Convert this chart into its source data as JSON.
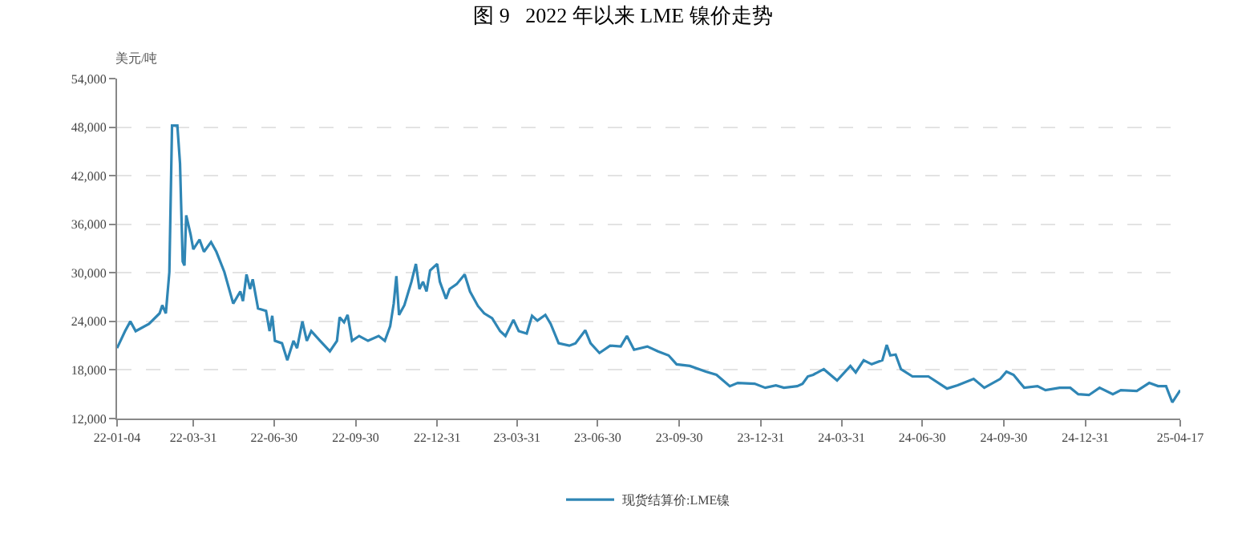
{
  "chart_data": {
    "type": "line",
    "title": "图 9   2022 年以来 LME 镍价走势",
    "ylabel": "美元/吨",
    "x": [
      "2022-01-04",
      "2022-01-13",
      "2022-01-19",
      "2022-01-25",
      "2022-02-09",
      "2022-02-21",
      "2022-02-24",
      "2022-02-28",
      "2022-03-04",
      "2022-03-07",
      "2022-03-13",
      "2022-03-16",
      "2022-03-19",
      "2022-03-21",
      "2022-03-23",
      "2022-03-28",
      "2022-03-31",
      "2022-04-07",
      "2022-04-12",
      "2022-04-20",
      "2022-04-26",
      "2022-05-05",
      "2022-05-15",
      "2022-05-23",
      "2022-05-26",
      "2022-05-30",
      "2022-06-03",
      "2022-06-06",
      "2022-06-12",
      "2022-06-21",
      "2022-06-25",
      "2022-06-28",
      "2022-07-01",
      "2022-07-09",
      "2022-07-15",
      "2022-07-22",
      "2022-07-26",
      "2022-08-01",
      "2022-08-06",
      "2022-08-11",
      "2022-08-21",
      "2022-09-01",
      "2022-09-09",
      "2022-09-12",
      "2022-09-17",
      "2022-09-21",
      "2022-09-26",
      "2022-10-04",
      "2022-10-14",
      "2022-10-26",
      "2022-11-02",
      "2022-11-08",
      "2022-11-12",
      "2022-11-15",
      "2022-11-18",
      "2022-11-24",
      "2022-12-02",
      "2022-12-07",
      "2022-12-11",
      "2022-12-15",
      "2022-12-19",
      "2022-12-23",
      "2022-12-31",
      "2023-01-03",
      "2023-01-10",
      "2023-01-14",
      "2023-01-22",
      "2023-01-31",
      "2023-02-06",
      "2023-02-15",
      "2023-02-22",
      "2023-03-03",
      "2023-03-12",
      "2023-03-18",
      "2023-03-27",
      "2023-04-02",
      "2023-04-11",
      "2023-04-17",
      "2023-04-23",
      "2023-05-02",
      "2023-05-08",
      "2023-05-17",
      "2023-05-29",
      "2023-06-05",
      "2023-06-16",
      "2023-06-22",
      "2023-07-02",
      "2023-07-14",
      "2023-07-26",
      "2023-08-02",
      "2023-08-10",
      "2023-08-25",
      "2023-09-06",
      "2023-09-18",
      "2023-09-27",
      "2023-10-12",
      "2023-10-30",
      "2023-11-11",
      "2023-11-26",
      "2023-12-05",
      "2023-12-24",
      "2024-01-05",
      "2024-01-17",
      "2024-01-26",
      "2024-02-10",
      "2024-02-16",
      "2024-02-22",
      "2024-02-28",
      "2024-03-11",
      "2024-03-26",
      "2024-04-10",
      "2024-04-16",
      "2024-04-25",
      "2024-05-04",
      "2024-05-16",
      "2024-05-21",
      "2024-05-25",
      "2024-05-31",
      "2024-06-06",
      "2024-06-19",
      "2024-07-07",
      "2024-07-28",
      "2024-08-09",
      "2024-08-27",
      "2024-09-08",
      "2024-09-26",
      "2024-10-03",
      "2024-10-11",
      "2024-10-23",
      "2024-11-07",
      "2024-11-16",
      "2024-12-02",
      "2024-12-14",
      "2024-12-23",
      "2025-01-04",
      "2025-01-16",
      "2025-01-31",
      "2025-02-09",
      "2025-02-27",
      "2025-03-13",
      "2025-03-23",
      "2025-04-01",
      "2025-04-08",
      "2025-04-17"
    ],
    "series": [
      {
        "name": "现货结算价:LME镍",
        "color": "#2f86b5",
        "values": [
          20700,
          22800,
          24000,
          22800,
          23700,
          25000,
          26000,
          25000,
          30100,
          48200,
          48200,
          43500,
          31400,
          30900,
          37100,
          34700,
          32900,
          34100,
          32600,
          33800,
          32600,
          30100,
          26200,
          27700,
          26500,
          29800,
          28000,
          29200,
          25600,
          25300,
          22800,
          24700,
          21600,
          21300,
          19200,
          21600,
          20700,
          24000,
          21600,
          22800,
          21600,
          20300,
          21600,
          24500,
          23900,
          24800,
          21600,
          22200,
          21600,
          22200,
          21600,
          23400,
          26200,
          29600,
          24800,
          26000,
          28900,
          31100,
          28000,
          28900,
          27700,
          30300,
          31100,
          28900,
          26800,
          28000,
          28600,
          29800,
          27700,
          25900,
          25000,
          24400,
          22800,
          22200,
          24200,
          22800,
          22500,
          24700,
          24100,
          24800,
          23700,
          21300,
          21000,
          21300,
          22900,
          21300,
          20100,
          21000,
          20900,
          22200,
          20500,
          20900,
          20300,
          19800,
          18700,
          18500,
          17800,
          17400,
          16000,
          16400,
          16300,
          15800,
          16100,
          15800,
          16000,
          16300,
          17200,
          17400,
          18100,
          16700,
          18500,
          17700,
          19200,
          18700,
          19200,
          21100,
          19800,
          19900,
          18100,
          17200,
          17200,
          15700,
          16100,
          16900,
          15800,
          16900,
          17800,
          17400,
          15800,
          16000,
          15500,
          15800,
          15800,
          15000,
          14900,
          15800,
          15000,
          15500,
          15400,
          16400,
          16000,
          16000,
          14000,
          15500
        ]
      }
    ],
    "xlim": [
      "2022-01-04",
      "2025-04-17"
    ],
    "xticks": [
      {
        "value": "2022-01-04",
        "label": "22-01-04"
      },
      {
        "value": "2022-03-31",
        "label": "22-03-31"
      },
      {
        "value": "2022-06-30",
        "label": "22-06-30"
      },
      {
        "value": "2022-09-30",
        "label": "22-09-30"
      },
      {
        "value": "2022-12-31",
        "label": "22-12-31"
      },
      {
        "value": "2023-03-31",
        "label": "23-03-31"
      },
      {
        "value": "2023-06-30",
        "label": "23-06-30"
      },
      {
        "value": "2023-09-30",
        "label": "23-09-30"
      },
      {
        "value": "2023-12-31",
        "label": "23-12-31"
      },
      {
        "value": "2024-03-31",
        "label": "24-03-31"
      },
      {
        "value": "2024-06-30",
        "label": "24-06-30"
      },
      {
        "value": "2024-09-30",
        "label": "24-09-30"
      },
      {
        "value": "2024-12-31",
        "label": "24-12-31"
      },
      {
        "value": "2025-04-17",
        "label": "25-04-17"
      }
    ],
    "ylim": [
      12000,
      54000
    ],
    "yticks": [
      {
        "value": 12000,
        "label": "12,000"
      },
      {
        "value": 18000,
        "label": "18,000"
      },
      {
        "value": 24000,
        "label": "24,000"
      },
      {
        "value": 30000,
        "label": "30,000"
      },
      {
        "value": 36000,
        "label": "36,000"
      },
      {
        "value": 42000,
        "label": "42,000"
      },
      {
        "value": 48000,
        "label": "48,000"
      },
      {
        "value": 54000,
        "label": "54,000"
      }
    ],
    "grid": "y",
    "legend": "bottom",
    "marker": "none",
    "line_style": "solid"
  }
}
